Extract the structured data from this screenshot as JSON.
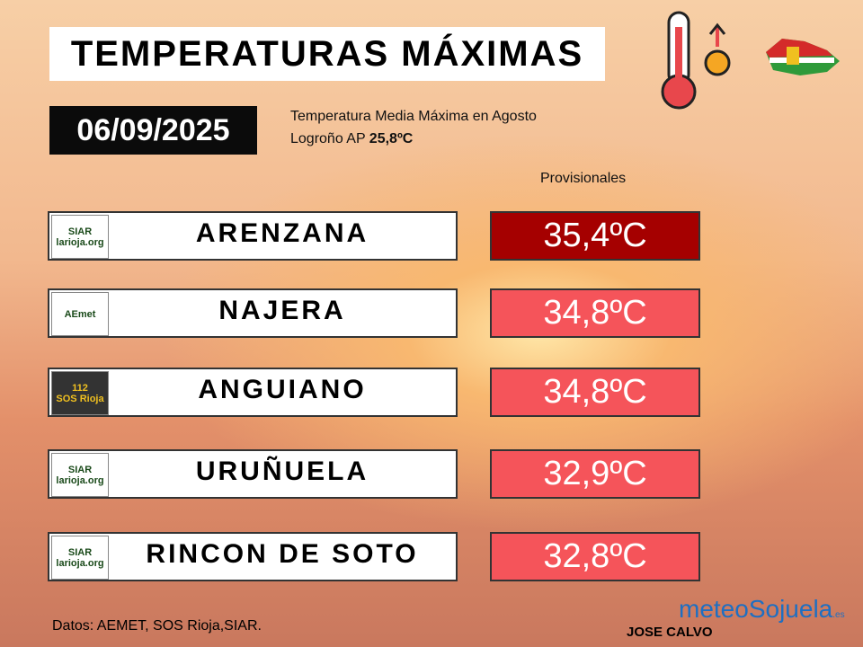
{
  "header": {
    "title": "TEMPERATURAS MÁXIMAS",
    "date": "06/09/2025",
    "note_line1": "Temperatura Media Máxima  en Agosto",
    "note_station": "Logroño AP",
    "note_value": "25,8ºC",
    "provisional": "Provisionales"
  },
  "rows": [
    {
      "logo": [
        "SIAR",
        "larioja.org"
      ],
      "station": "ARENZANA",
      "temp": "35,4ºC",
      "color": "#a50000"
    },
    {
      "logo": [
        "AEmet"
      ],
      "station": "NAJERA",
      "temp": "34,8ºC",
      "color": "#f5545a"
    },
    {
      "logo": [
        "112",
        "SOS Rioja"
      ],
      "station": "ANGUIANO",
      "temp": "34,8ºC",
      "color": "#f5545a"
    },
    {
      "logo": [
        "SIAR",
        "larioja.org"
      ],
      "station": "URUÑUELA",
      "temp": "32,9ºC",
      "color": "#f5545a"
    },
    {
      "logo": [
        "SIAR",
        "larioja.org"
      ],
      "station": "RINCON DE SOTO",
      "temp": "32,8ºC",
      "color": "#f5545a"
    }
  ],
  "footer": {
    "sources": "Datos: AEMET, SOS Rioja,SIAR.",
    "author": "JOSE CALVO",
    "brand": [
      "meteo",
      "Sojuela",
      ".es"
    ]
  }
}
